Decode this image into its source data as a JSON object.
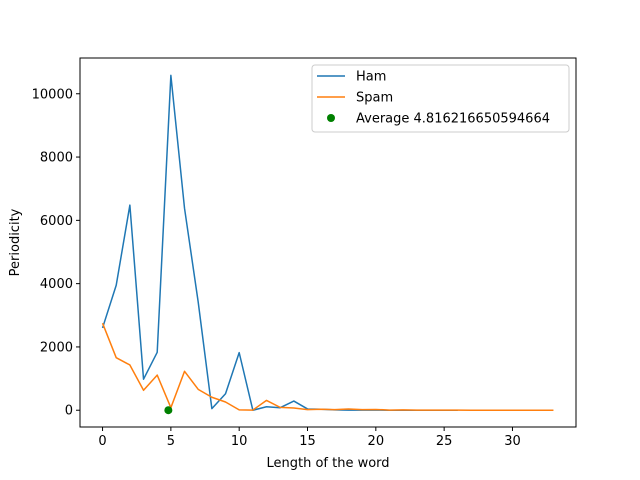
{
  "chart_data": {
    "type": "line",
    "title": "",
    "xlabel": "Length of the word",
    "ylabel": "Periodicity",
    "xlim": [
      -1.65,
      34.65
    ],
    "ylim": [
      -530,
      11130
    ],
    "xticks": [
      0,
      5,
      10,
      15,
      20,
      25,
      30
    ],
    "yticks": [
      0,
      2000,
      4000,
      6000,
      8000,
      10000
    ],
    "grid": false,
    "legend_position": "top-right",
    "series": [
      {
        "name": "Ham",
        "color": "#1f77b4",
        "x": [
          0,
          1,
          2,
          3,
          4,
          5,
          6,
          7,
          8,
          9,
          10,
          11,
          12,
          13,
          14,
          15,
          16,
          17,
          18,
          19,
          20,
          21,
          22,
          23,
          24,
          25,
          26
        ],
        "values": [
          2600,
          3950,
          6480,
          980,
          1830,
          10580,
          6380,
          3420,
          50,
          520,
          1820,
          0,
          110,
          80,
          290,
          40,
          30,
          10,
          5,
          5,
          5,
          0,
          0,
          0,
          0,
          0,
          0
        ]
      },
      {
        "name": "Spam",
        "color": "#ff7f0e",
        "x": [
          0,
          1,
          2,
          3,
          4,
          5,
          6,
          7,
          8,
          9,
          10,
          11,
          12,
          13,
          14,
          15,
          16,
          17,
          18,
          19,
          20,
          21,
          22,
          23,
          24,
          25,
          26,
          27,
          28,
          29,
          30,
          31,
          32,
          33
        ],
        "values": [
          2750,
          1660,
          1430,
          630,
          1110,
          80,
          1230,
          660,
          410,
          260,
          10,
          5,
          310,
          90,
          70,
          20,
          30,
          20,
          40,
          20,
          25,
          5,
          10,
          5,
          5,
          5,
          5,
          0,
          0,
          0,
          0,
          0,
          0,
          0
        ]
      },
      {
        "name": "Average 4.816216650594664",
        "type": "scatter",
        "color": "#008000",
        "x": [
          4.816216650594664
        ],
        "values": [
          0
        ]
      }
    ]
  }
}
